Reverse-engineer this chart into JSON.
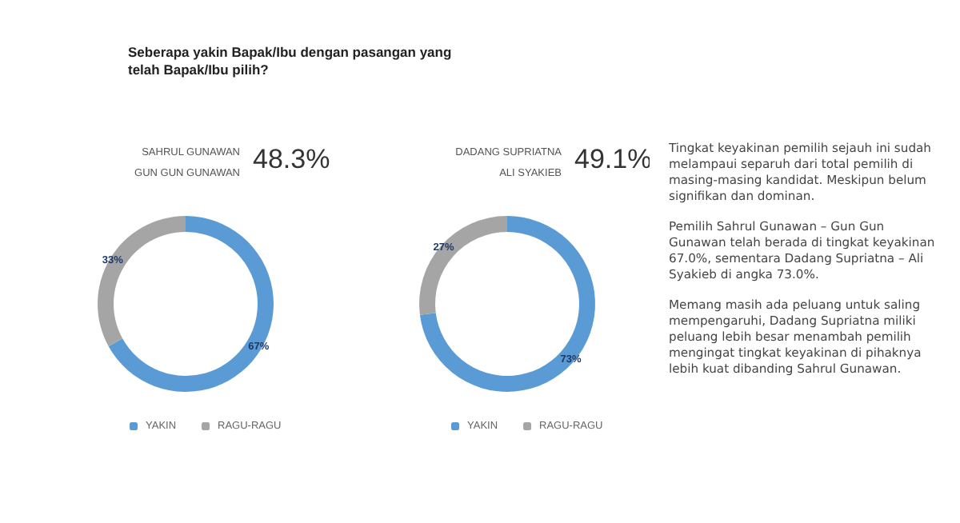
{
  "chart_data": [
    {
      "type": "donut",
      "title": "Seberapa yakin Bapak/Ibu dengan pasangan yang telah Bapak/Ibu pilih?",
      "annotations": [
        "SAHRUL GUNAWAN",
        "GUN GUN GUNAWAN",
        "48.3%"
      ],
      "categories": [
        "YAKIN",
        "RAGU-RAGU"
      ],
      "values": [
        67,
        33
      ],
      "value_labels": [
        "67%",
        "33%"
      ],
      "colors": [
        "#5b9bd5",
        "#a5a5a5"
      ],
      "legend": "bottom"
    },
    {
      "type": "donut",
      "annotations": [
        "DADANG SUPRIATNA",
        "ALI SYAKIEB",
        "49.1%"
      ],
      "categories": [
        "YAKIN",
        "RAGU-RAGU"
      ],
      "values": [
        73,
        27
      ],
      "value_labels": [
        "73%",
        "27%"
      ],
      "colors": [
        "#5b9bd5",
        "#a5a5a5"
      ],
      "legend": "bottom"
    },
    {
      "type": "other",
      "annotations": [
        "Tingkat keyakinan pemilih sejauh ini sudah melampaui separuh dari total pemilih di masing-masing kandidat. Meskipun belum signifikan dan dominan.",
        "Pemilih Sahrul Gunawan – Gun Gun Gunawan telah berada di tingkat keyakinan 67.0%, sementara Dadang Supriatna – Ali Syakieb di angka 73.0%.",
        "Memang masih ada peluang untuk saling mempengaruhi, Dadang Supriatna miliki peluang lebih besar menambah pemilih mengingat tingkat keyakinan di pihaknya lebih kuat dibanding Sahrul Gunawan."
      ]
    }
  ]
}
